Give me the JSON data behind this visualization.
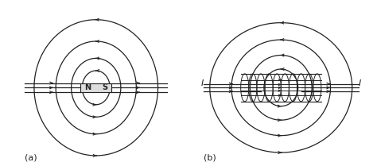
{
  "bg_color": "#f0f0f0",
  "line_color": "#222222",
  "label_a": "(a)",
  "label_b": "(b)",
  "magnet_label_N": "N",
  "magnet_label_S": "S",
  "current_label": "I",
  "fig_width": 4.74,
  "fig_height": 2.09,
  "dpi": 100
}
